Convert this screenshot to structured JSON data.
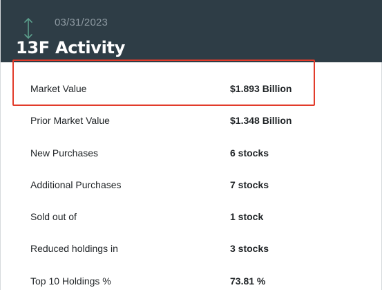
{
  "header": {
    "date": "03/31/2023",
    "title": "13F Activity",
    "icon": "sort-arrows-icon",
    "background": "#2e3d46"
  },
  "rows": [
    {
      "label": "Market Value",
      "value": "$1.893 Billion"
    },
    {
      "label": "Prior Market Value",
      "value": "$1.348 Billion"
    },
    {
      "label": "New Purchases",
      "value": "6 stocks"
    },
    {
      "label": "Additional Purchases",
      "value": "7 stocks"
    },
    {
      "label": "Sold out of",
      "value": "1 stock"
    },
    {
      "label": "Reduced holdings in",
      "value": "3 stocks"
    },
    {
      "label": "Top 10 Holdings %",
      "value": "73.81 %"
    }
  ],
  "colors": {
    "highlight_border": "#e23b2a",
    "icon": "#5c9f8c"
  }
}
